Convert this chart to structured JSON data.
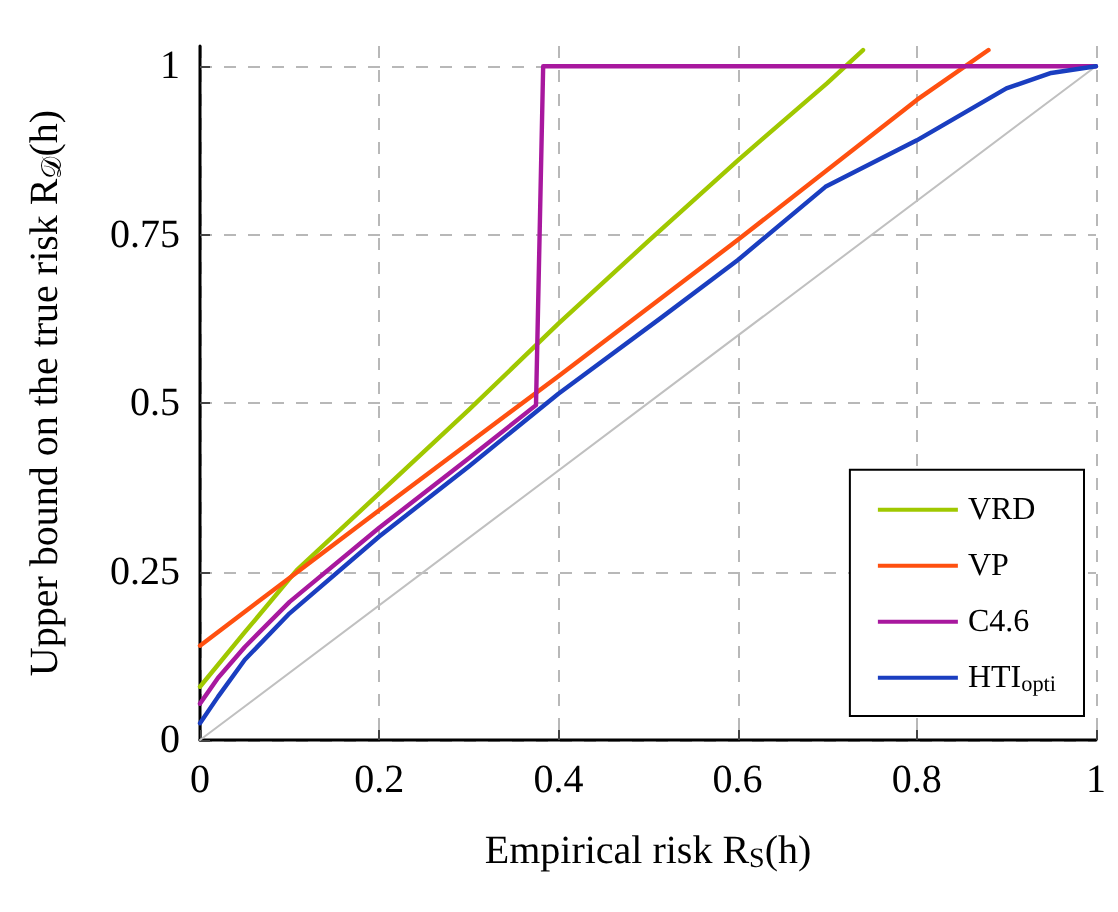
{
  "chart_data": {
    "type": "line",
    "xlabel": "Empirical risk R$_{S}$(h)",
    "ylabel": "Upper bound on the true risk R$_{𝒟}$(h)",
    "xlim": [
      0,
      1
    ],
    "ylim": [
      0,
      1.03
    ],
    "xticks": [
      0,
      0.2,
      0.4,
      0.6,
      0.8,
      1
    ],
    "yticks": [
      0,
      0.25,
      0.5,
      0.75,
      1
    ],
    "grid": true,
    "legend": "bottom right",
    "marker": "none",
    "line_style": "solid",
    "series": [
      {
        "color": "#c0c0c0",
        "x": [
          0,
          1
        ],
        "values": [
          0,
          1
        ]
      },
      {
        "name": "VRD",
        "color": "#a0c800",
        "x": [
          0,
          0.05,
          0.108,
          0.2,
          0.3,
          0.4,
          0.5,
          0.6,
          0.7,
          0.74
        ],
        "values": [
          0.079,
          0.16,
          0.252,
          0.366,
          0.49,
          0.618,
          0.74,
          0.86,
          0.975,
          1.024
        ]
      },
      {
        "name": "VP",
        "color": "#ff5010",
        "x": [
          0,
          0.2,
          0.4,
          0.6,
          0.8,
          0.88
        ],
        "values": [
          0.14,
          0.341,
          0.54,
          0.742,
          0.95,
          1.024
        ]
      },
      {
        "name": "C4.6",
        "color": "#a8189e",
        "x": [
          0,
          0.02,
          0.05,
          0.1,
          0.2,
          0.3,
          0.375,
          0.383,
          1
        ],
        "values": [
          0.054,
          0.092,
          0.138,
          0.205,
          0.315,
          0.418,
          0.497,
          1,
          1
        ]
      },
      {
        "name": "HTI$_{opti}$",
        "color": "#1a3ec0",
        "x": [
          0,
          0.02,
          0.05,
          0.1,
          0.2,
          0.3,
          0.4,
          0.513,
          0.6,
          0.698,
          0.8,
          0.9,
          0.95,
          1
        ],
        "values": [
          0.025,
          0.064,
          0.119,
          0.188,
          0.302,
          0.406,
          0.514,
          0.625,
          0.712,
          0.821,
          0.89,
          0.967,
          0.99,
          1
        ]
      }
    ]
  }
}
